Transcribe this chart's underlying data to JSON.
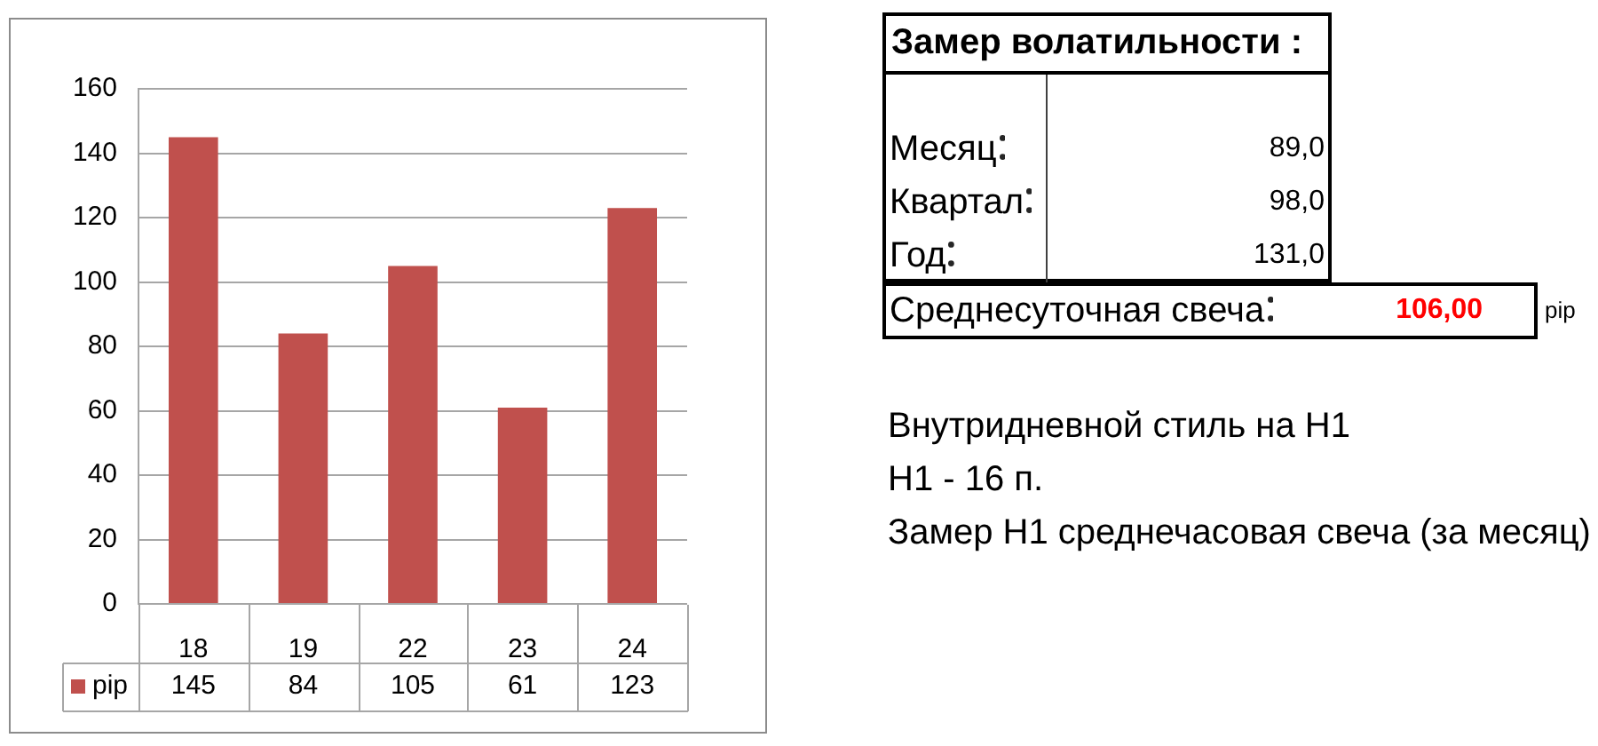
{
  "chart_data": [
    {
      "type": "bar",
      "categories": [
        "18",
        "19",
        "22",
        "23",
        "24"
      ],
      "series": [
        {
          "name": "pip",
          "color": "#c0504d",
          "values": [
            145,
            84,
            105,
            61,
            123
          ]
        }
      ],
      "ylim": [
        0,
        160
      ],
      "yticks": [
        0,
        20,
        40,
        60,
        80,
        100,
        120,
        140,
        160
      ],
      "grid": "y",
      "legend": "bottom",
      "data_labels": true
    },
    {
      "type": "other",
      "title": "Замер волатильности :",
      "categories": [
        "Месяц",
        "Квартал",
        "Год",
        "Среднесуточная свеча"
      ],
      "values": [
        89.0,
        98.0,
        131.0,
        106.0
      ],
      "value_labels": [
        "89,0",
        "98,0",
        "131,0",
        "106,00"
      ],
      "colors": [
        "#000000",
        "#000000",
        "#000000",
        "#ff0000"
      ],
      "annotations": [
        "pip",
        "Внутридневной стиль на H1",
        "H1 - 16 п.",
        "Замер H1 среднечасовая свеча (за месяц)"
      ]
    }
  ]
}
